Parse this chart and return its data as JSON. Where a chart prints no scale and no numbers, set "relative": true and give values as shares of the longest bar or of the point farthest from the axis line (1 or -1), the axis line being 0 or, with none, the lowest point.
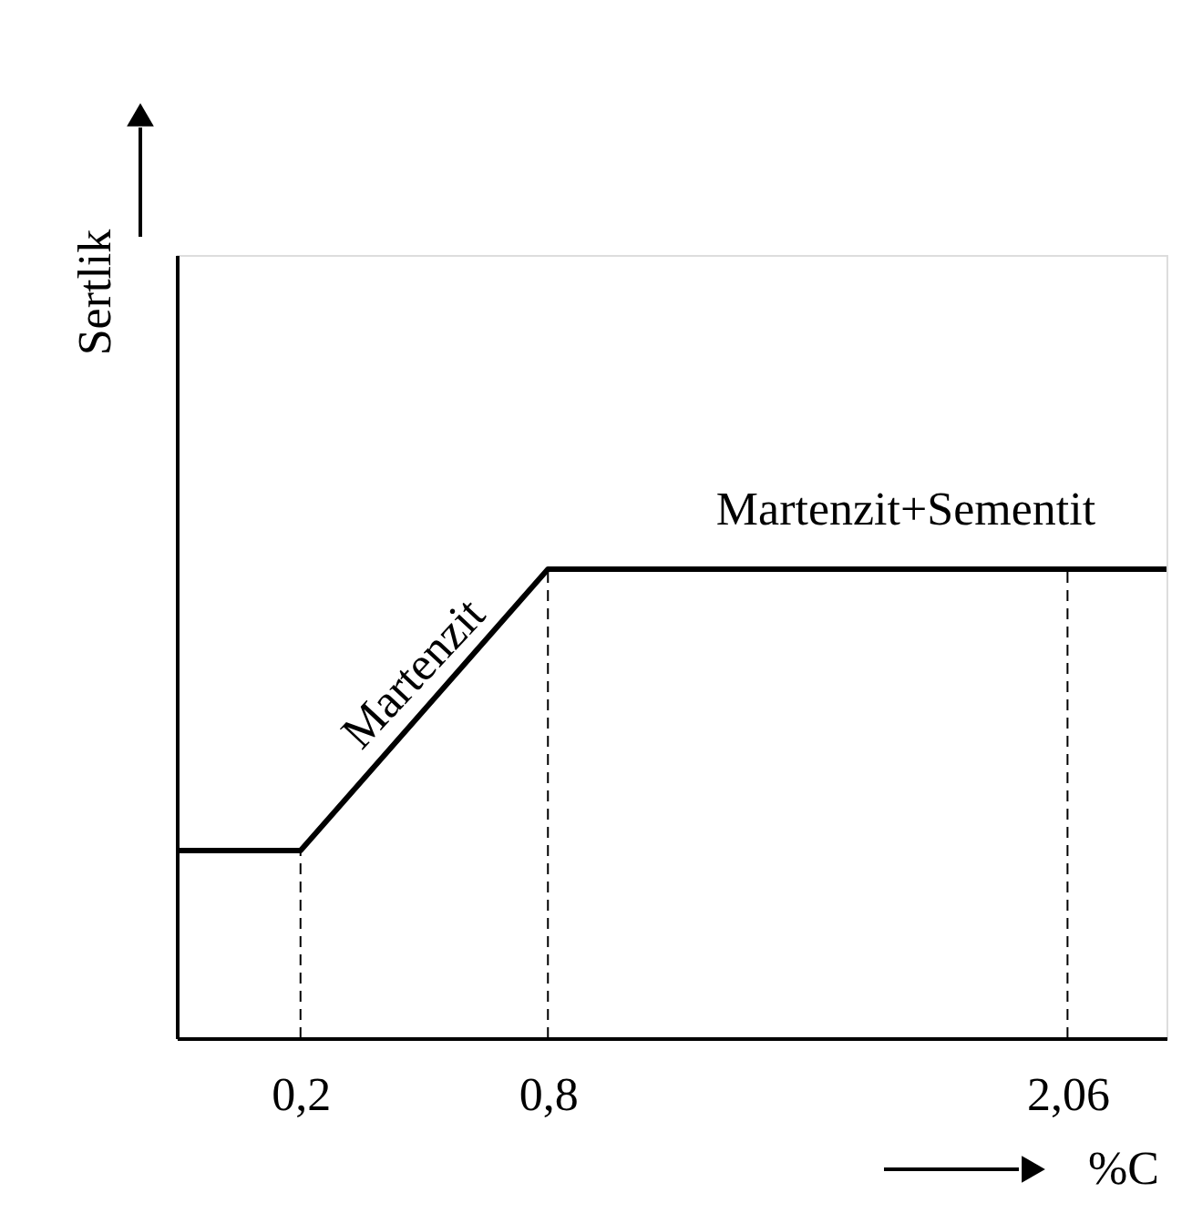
{
  "chart_data": {
    "type": "line",
    "relative": true,
    "xlabel": "%C",
    "ylabel": "Sertlik",
    "x": [
      -0.1,
      0.2,
      0.8,
      2.3
    ],
    "series": [
      {
        "color": "#000000",
        "values": [
          0.4,
          0.4,
          1,
          1
        ]
      }
    ],
    "xlim": [
      -0.1,
      2.3
    ],
    "xticks": [
      {
        "value": 0.2,
        "label": "0,2"
      },
      {
        "value": 0.8,
        "label": "0,8"
      },
      {
        "value": 2.06,
        "label": "2,06"
      }
    ],
    "ref_lines": [
      {
        "axis": "x",
        "value": 0.2,
        "line_style": "dashed",
        "color": "#000000"
      },
      {
        "axis": "x",
        "value": 0.8,
        "line_style": "dashed",
        "color": "#000000"
      },
      {
        "axis": "x",
        "value": 2.06,
        "line_style": "dashed",
        "color": "#000000"
      }
    ],
    "annotations": [
      "Martenzit",
      "Martenzit+Sementit"
    ],
    "tick_labels": "x",
    "grid": false,
    "marker": "none",
    "line_style": "solid"
  }
}
